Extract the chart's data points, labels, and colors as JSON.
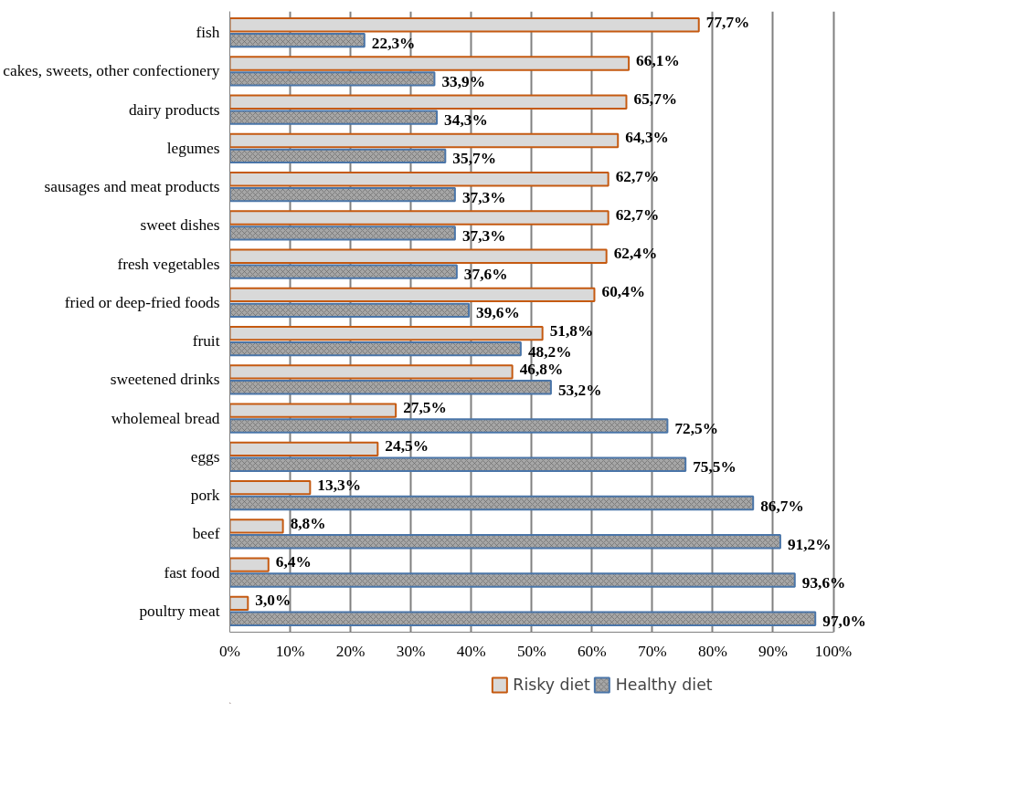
{
  "chart_data": {
    "type": "bar",
    "orientation": "horizontal",
    "categories": [
      "fish",
      "cakes, sweets, other confectionery",
      "dairy products",
      "legumes",
      "sausages and meat products",
      "sweet dishes",
      "fresh vegetables",
      "fried or deep-fried foods",
      "fruit",
      "sweetened drinks",
      "wholemeal bread",
      "eggs",
      "pork",
      "beef",
      "fast food",
      "poultry meat"
    ],
    "series": [
      {
        "name": "Risky diet",
        "color": "#d9d9d9",
        "values": [
          77.7,
          66.1,
          65.7,
          64.3,
          62.7,
          62.7,
          62.4,
          60.4,
          51.8,
          46.8,
          27.5,
          24.5,
          13.3,
          8.8,
          6.4,
          3.0
        ],
        "value_labels": [
          "77,7%",
          "66,1%",
          "65,7%",
          "64,3%",
          "62,7%",
          "62,7%",
          "62,4%",
          "60,4%",
          "51,8%",
          "46,8%",
          "27,5%",
          "24,5%",
          "13,3%",
          "8,8%",
          "6,4%",
          "3,0%"
        ]
      },
      {
        "name": "Healthy diet",
        "color": "#a6a6a6",
        "values": [
          22.3,
          33.9,
          34.3,
          35.7,
          37.3,
          37.3,
          37.6,
          39.6,
          48.2,
          53.2,
          72.5,
          75.5,
          86.7,
          91.2,
          93.6,
          97.0
        ],
        "value_labels": [
          "22,3%",
          "33,9%",
          "34,3%",
          "35,7%",
          "37,3%",
          "37,3%",
          "37,6%",
          "39,6%",
          "48,2%",
          "53,2%",
          "72,5%",
          "75,5%",
          "86,7%",
          "91,2%",
          "93,6%",
          "97,0%"
        ]
      }
    ],
    "xlim": [
      0,
      100
    ],
    "xticks": [
      {
        "value": 0,
        "label": "0%"
      },
      {
        "value": 10,
        "label": "10%"
      },
      {
        "value": 20,
        "label": "20%"
      },
      {
        "value": 30,
        "label": "30%"
      },
      {
        "value": 40,
        "label": "40%"
      },
      {
        "value": 50,
        "label": "50%"
      },
      {
        "value": 60,
        "label": "60%"
      },
      {
        "value": 70,
        "label": "70%"
      },
      {
        "value": 80,
        "label": "80%"
      },
      {
        "value": 90,
        "label": "90%"
      },
      {
        "value": 100,
        "label": "100%"
      }
    ],
    "grid": "x",
    "legend": "bottom"
  }
}
